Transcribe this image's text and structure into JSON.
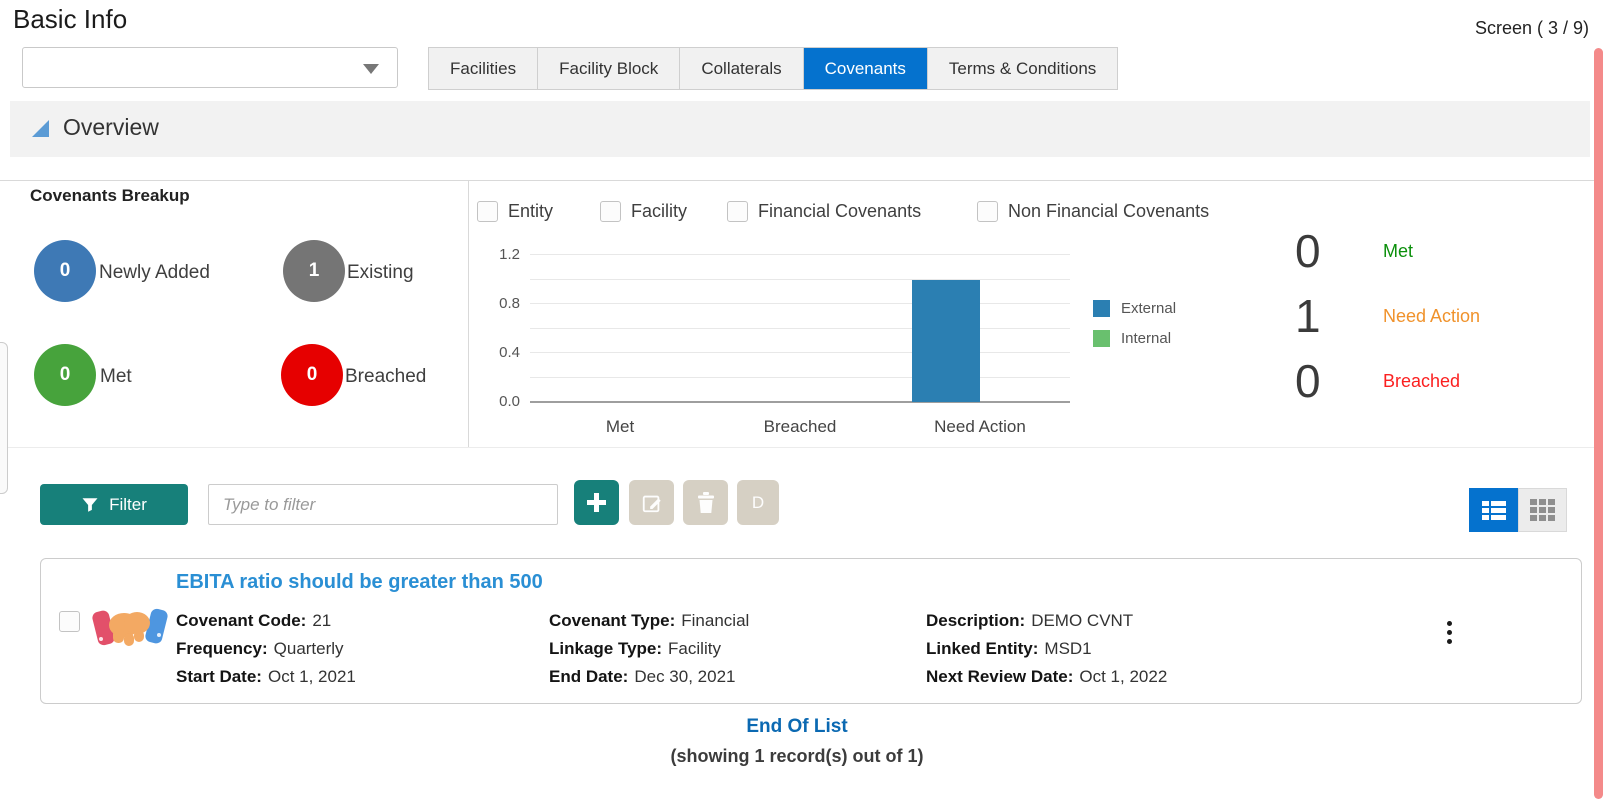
{
  "header": {
    "title": "Basic Info",
    "screen_counter": "Screen ( 3 / 9)"
  },
  "facility_dropdown": {
    "value": "",
    "icon": "caret-down"
  },
  "tabs": [
    {
      "label": "Facilities",
      "active": false
    },
    {
      "label": "Facility Block",
      "active": false
    },
    {
      "label": "Collaterals",
      "active": false
    },
    {
      "label": "Covenants",
      "active": true
    },
    {
      "label": "Terms & Conditions",
      "active": false
    }
  ],
  "overview": {
    "section_title": "Overview",
    "collapse_icon": "triangle-expanded",
    "breakup": {
      "title": "Covenants Breakup",
      "items": [
        {
          "count": "0",
          "label": "Newly Added",
          "color": "#3e79b5"
        },
        {
          "count": "1",
          "label": "Existing",
          "color": "#757575"
        },
        {
          "count": "0",
          "label": "Met",
          "color": "#47a33c"
        },
        {
          "count": "0",
          "label": "Breached",
          "color": "#e60000"
        }
      ]
    },
    "covenant_filters": [
      {
        "label": "Entity",
        "checked": false
      },
      {
        "label": "Facility",
        "checked": false
      },
      {
        "label": "Financial Covenants",
        "checked": false
      },
      {
        "label": "Non Financial Covenants",
        "checked": false
      }
    ],
    "stats": [
      {
        "value": "0",
        "label": "Met",
        "color": "#0a8f0a"
      },
      {
        "value": "1",
        "label": "Need Action",
        "color": "#f0922b"
      },
      {
        "value": "0",
        "label": "Breached",
        "color": "#fb2020"
      }
    ]
  },
  "chart_data": {
    "type": "bar",
    "title": "",
    "categories": [
      "Met",
      "Breached",
      "Need Action"
    ],
    "series": [
      {
        "name": "External",
        "values": [
          0,
          0,
          1
        ],
        "color": "#2b7fb2"
      },
      {
        "name": "Internal",
        "values": [
          0,
          0,
          0
        ],
        "color": "#69c06e"
      }
    ],
    "ylim": [
      0,
      1.2
    ],
    "yticks": [
      0.0,
      0.4,
      0.8,
      1.2
    ],
    "grid_step": 0.2,
    "grid": true,
    "legend_position": "right"
  },
  "toolbar": {
    "filter_label": "Filter",
    "filter_placeholder": "Type to filter",
    "filter_value": "",
    "add_icon": "plus",
    "d_label": "D",
    "list_view_active": true
  },
  "record": {
    "checked": false,
    "icon": "handshake",
    "title": "EBITA ratio should be greater than 500",
    "columns": [
      [
        {
          "label": "Covenant Code:",
          "value": "21"
        },
        {
          "label": "Frequency:",
          "value": "Quarterly"
        },
        {
          "label": "Start Date:",
          "value": "Oct 1, 2021"
        }
      ],
      [
        {
          "label": "Covenant Type:",
          "value": "Financial"
        },
        {
          "label": "Linkage Type:",
          "value": "Facility"
        },
        {
          "label": "End Date:",
          "value": "Dec 30, 2021"
        }
      ],
      [
        {
          "label": "Description:",
          "value": "DEMO CVNT"
        },
        {
          "label": "Linked Entity:",
          "value": "MSD1"
        },
        {
          "label": "Next Review Date:",
          "value": "Oct 1, 2022"
        }
      ]
    ]
  },
  "footer": {
    "end_of_list": "End Of List",
    "showing": "(showing 1 record(s) out of 1)"
  },
  "theme": {
    "accent_blue": "#0572ce",
    "teal": "#17807a",
    "disabled_beige": "#d6d0c4",
    "link_blue": "#2a8fd4",
    "scrollbar_salmon": "#f48a8a"
  }
}
